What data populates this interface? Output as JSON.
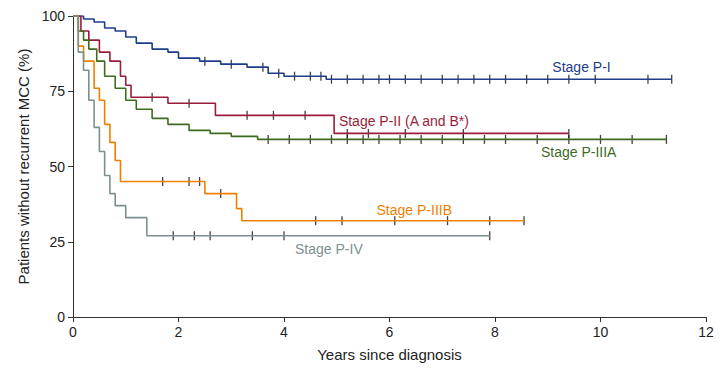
{
  "chart_data": {
    "type": "line",
    "line_style": "step",
    "x_label": "Years since diagnosis",
    "y_label": "Patients without recurrent MCC (%)",
    "xlim": [
      0,
      12
    ],
    "xticks": [
      0,
      2,
      4,
      6,
      8,
      10,
      12
    ],
    "ylim": [
      0,
      100
    ],
    "yticks": [
      0,
      25,
      50,
      75,
      100
    ],
    "grid": false,
    "series": [
      {
        "name": "Stage P-I",
        "color": "#1f3c88",
        "x": [
          0,
          0.2,
          0.4,
          0.6,
          0.8,
          1.0,
          1.2,
          1.5,
          1.8,
          2.0,
          2.4,
          2.8,
          3.3,
          3.7,
          4.0,
          4.8,
          11.35
        ],
        "values": [
          100,
          99,
          98,
          96,
          95,
          93,
          91,
          89,
          88,
          86,
          85,
          84,
          83,
          81,
          80,
          79,
          79
        ],
        "censored": [
          2.5,
          3.0,
          3.6,
          3.9,
          4.2,
          4.5,
          4.7,
          4.9,
          5.2,
          5.5,
          5.8,
          6.0,
          6.3,
          6.6,
          7.0,
          7.3,
          7.6,
          7.9,
          8.2,
          8.6,
          9.0,
          9.4,
          9.9,
          10.9,
          11.35
        ]
      },
      {
        "name": "Stage P-II (A and B*)",
        "color": "#9b1c3a",
        "x": [
          0,
          0.15,
          0.3,
          0.5,
          0.7,
          0.9,
          1.0,
          1.1,
          1.8,
          2.7,
          4.95,
          9.4
        ],
        "values": [
          100,
          95,
          92,
          88,
          85,
          80,
          77,
          73,
          71,
          67,
          61,
          61
        ],
        "censored": [
          1.5,
          2.2,
          3.3,
          3.8,
          4.4,
          5.2,
          5.6,
          6.3,
          7.4,
          9.4
        ]
      },
      {
        "name": "Stage P-IIIA",
        "color": "#3e6b1f",
        "x": [
          0,
          0.1,
          0.2,
          0.3,
          0.45,
          0.6,
          0.8,
          1.0,
          1.2,
          1.5,
          1.8,
          2.2,
          2.6,
          3.0,
          3.5,
          11.25
        ],
        "values": [
          100,
          95,
          92,
          89,
          85,
          80,
          76,
          72,
          69,
          66,
          64,
          62,
          61,
          60,
          59,
          59
        ],
        "censored": [
          3.7,
          4.1,
          4.5,
          4.9,
          5.2,
          5.5,
          5.8,
          6.2,
          6.6,
          7.0,
          7.4,
          7.8,
          8.2,
          8.8,
          9.4,
          10.0,
          10.6,
          11.25
        ]
      },
      {
        "name": "Stage P-IIIB",
        "color": "#f07f00",
        "x": [
          0,
          0.1,
          0.2,
          0.4,
          0.5,
          0.6,
          0.7,
          0.8,
          0.9,
          2.5,
          3.1,
          3.2,
          8.55
        ],
        "values": [
          100,
          90,
          85,
          76,
          72,
          64,
          58,
          52,
          45,
          41,
          36,
          32,
          32
        ],
        "censored": [
          1.7,
          2.2,
          2.4,
          2.8,
          4.6,
          5.1,
          6.1,
          7.1,
          7.9,
          8.55
        ]
      },
      {
        "name": "Stage P-IV",
        "color": "#7d9090",
        "x": [
          0,
          0.1,
          0.2,
          0.3,
          0.4,
          0.5,
          0.6,
          0.7,
          0.8,
          1.0,
          1.4,
          7.9
        ],
        "values": [
          100,
          88,
          82,
          72,
          63,
          55,
          47,
          41,
          37,
          33,
          27,
          27
        ],
        "censored": [
          1.9,
          2.3,
          2.6,
          3.4,
          4.0,
          7.9
        ]
      }
    ]
  }
}
